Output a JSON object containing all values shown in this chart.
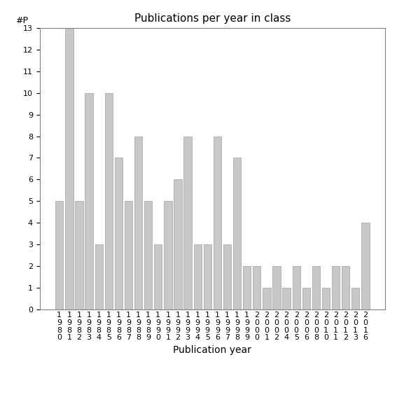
{
  "title": "Publications per year in class",
  "xlabel": "Publication year",
  "ylabel": "#P",
  "categories": [
    "1980",
    "1981",
    "1982",
    "1983",
    "1984",
    "1985",
    "1986",
    "1987",
    "1988",
    "1989",
    "1990",
    "1991",
    "1992",
    "1993",
    "1994",
    "1995",
    "1996",
    "1997",
    "1998",
    "1999",
    "2000",
    "2001",
    "2002",
    "2004",
    "2005",
    "2006",
    "2008",
    "2010",
    "2011",
    "2012",
    "2013",
    "2016"
  ],
  "values": [
    5,
    13,
    5,
    10,
    3,
    10,
    7,
    5,
    8,
    5,
    3,
    5,
    6,
    8,
    3,
    3,
    8,
    3,
    7,
    2,
    2,
    1,
    2,
    1,
    2,
    1,
    2,
    1,
    2,
    2,
    1,
    4
  ],
  "bar_color": "#c8c8c8",
  "bar_edge_color": "#a0a0a0",
  "ylim": [
    0,
    13
  ],
  "yticks": [
    0,
    1,
    2,
    3,
    4,
    5,
    6,
    7,
    8,
    9,
    10,
    11,
    12,
    13
  ],
  "title_fontsize": 11,
  "xlabel_fontsize": 10,
  "tick_label_fontsize": 8,
  "ylabel_fontsize": 9,
  "background_color": "#ffffff"
}
